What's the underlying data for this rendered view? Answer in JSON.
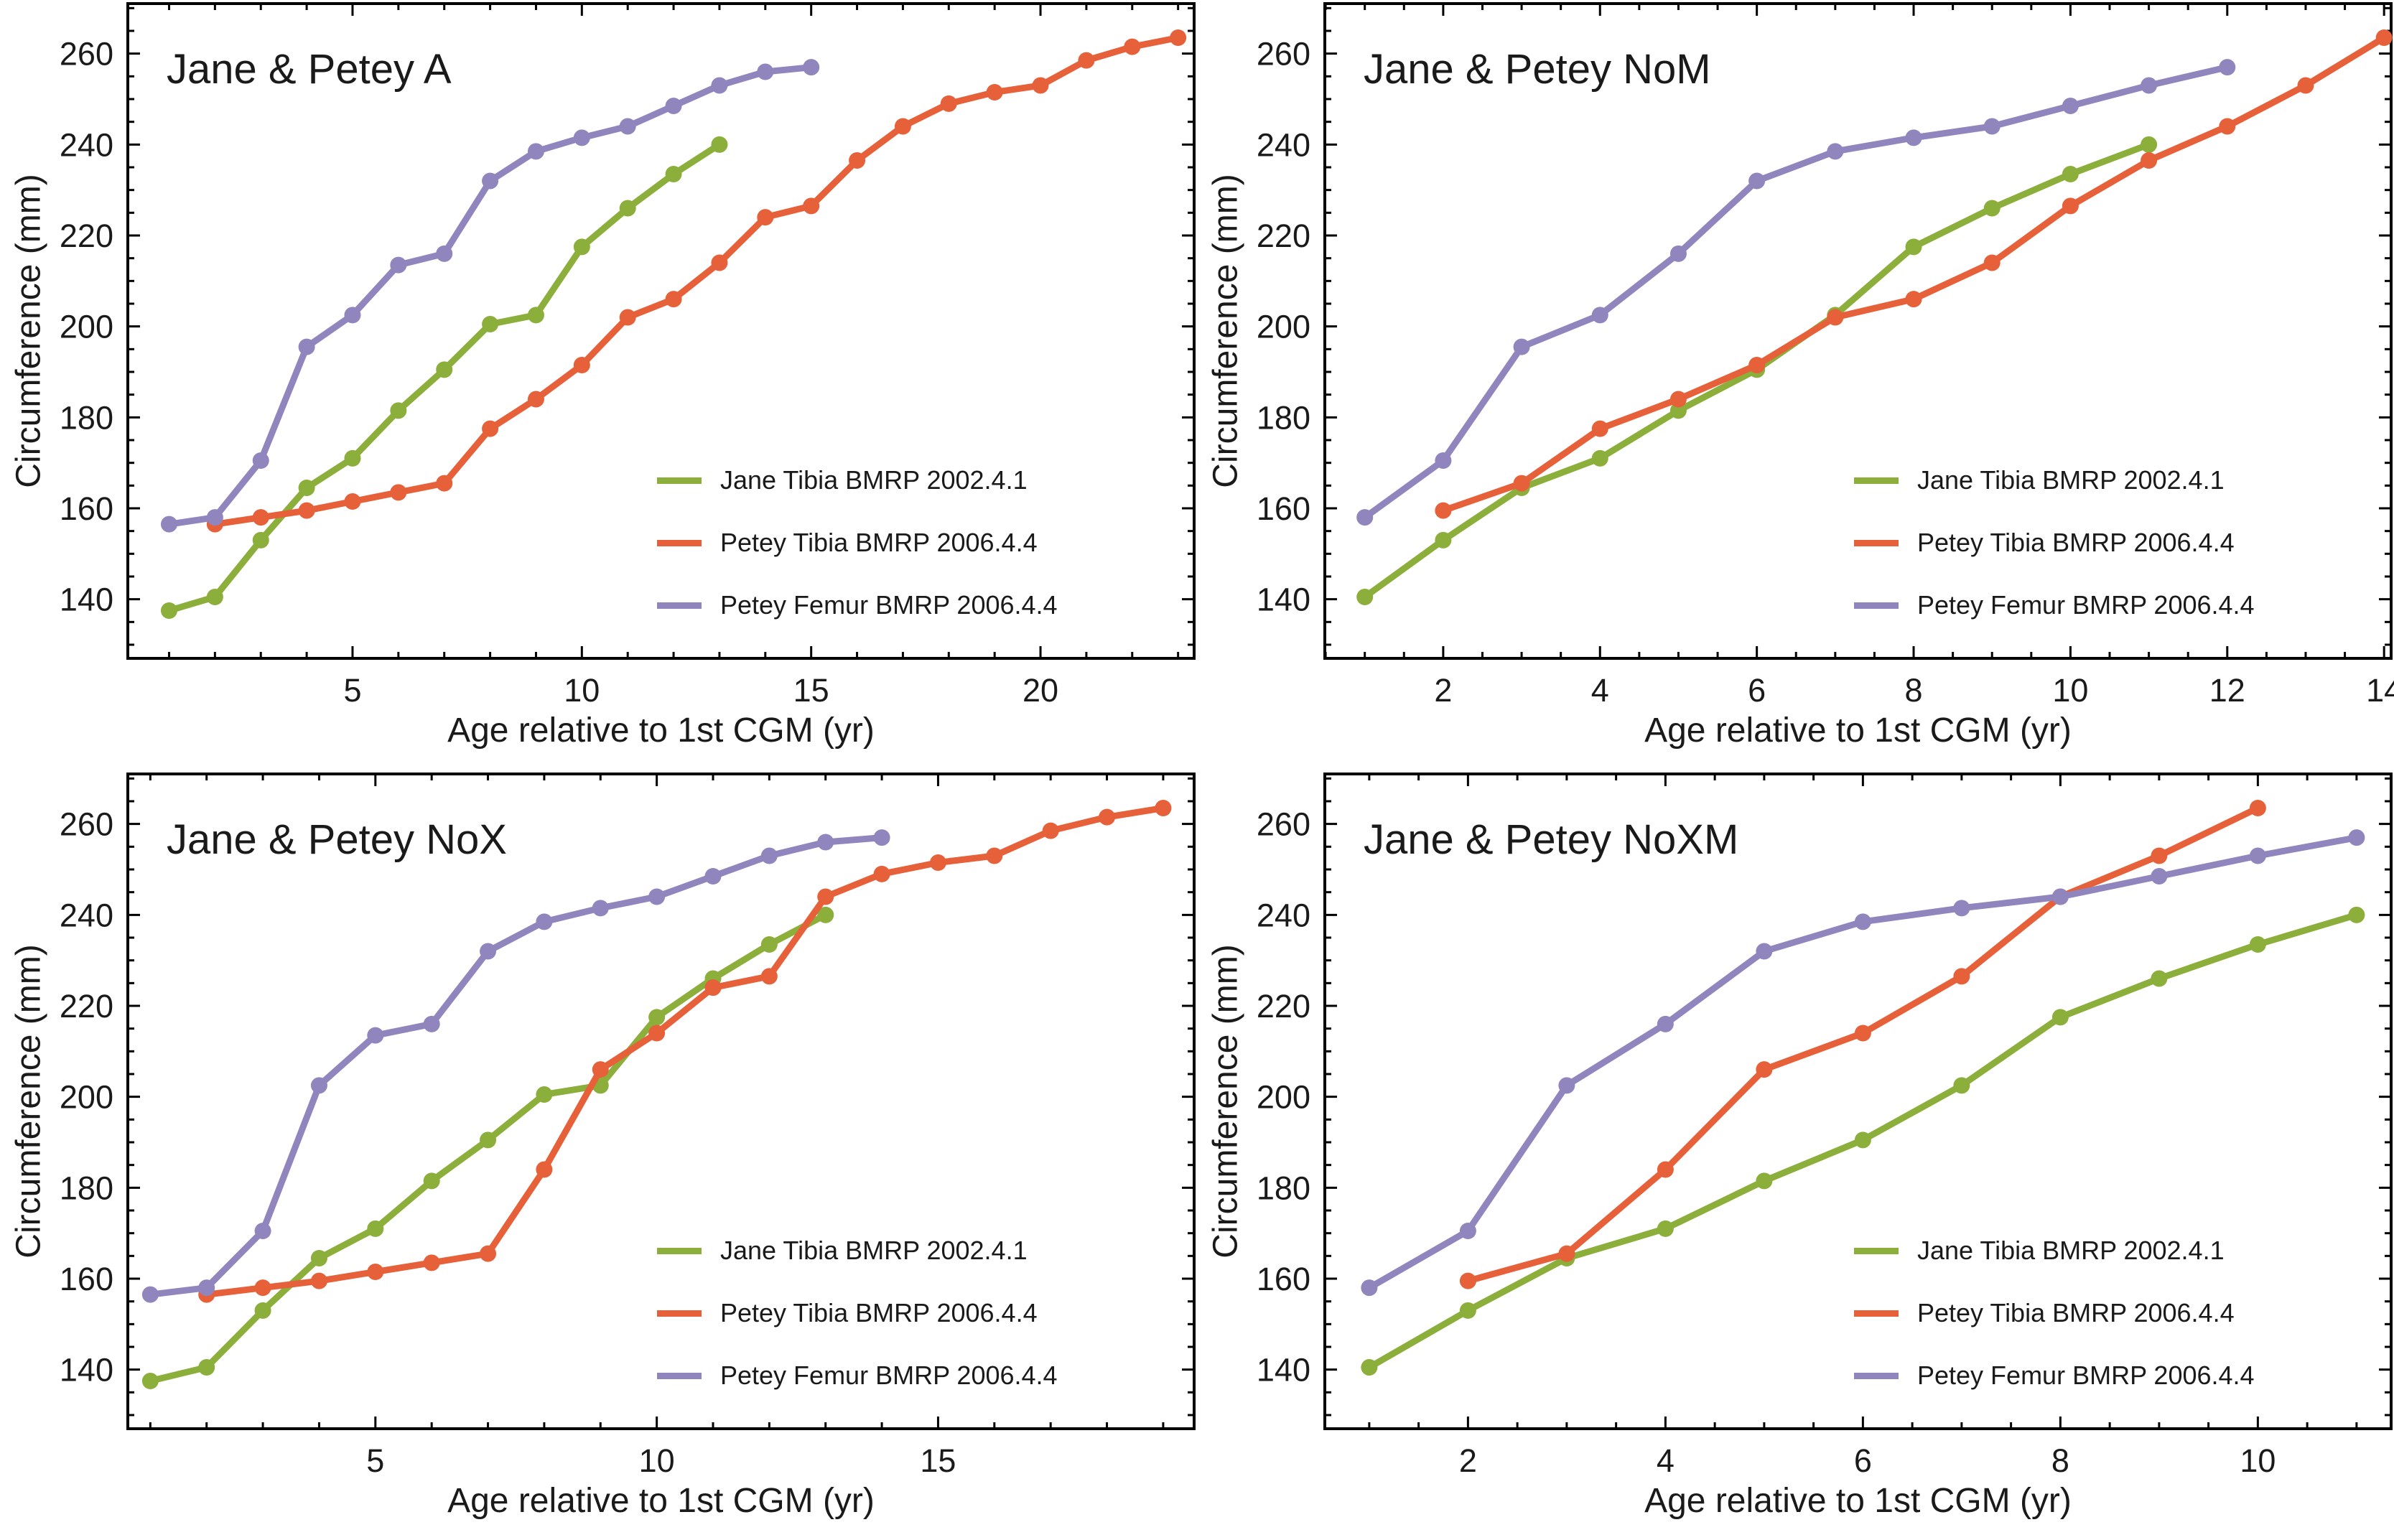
{
  "figure": {
    "background": "#ffffff",
    "frame_color": "#000000",
    "xlabel": "Age relative to 1st CGM (yr)",
    "ylabel": "Circumference (mm)"
  },
  "colors": {
    "jane_tibia": "#8CAE3B",
    "petey_tibia": "#E6603A",
    "petey_femur": "#9185BE"
  },
  "legend": [
    {
      "label": "Jane Tibia BMRP 2002.4.1",
      "color": "#8CAE3B"
    },
    {
      "label": "Petey Tibia BMRP 2006.4.4",
      "color": "#E6603A"
    },
    {
      "label": "Petey Femur BMRP 2006.4.4",
      "color": "#9185BE"
    }
  ],
  "chart_data": [
    {
      "type": "line",
      "title": "Jane & Petey A",
      "xlabel": "Age relative to 1st CGM (yr)",
      "ylabel": "Circumference (mm)",
      "xlim": [
        0.1,
        23.35
      ],
      "ylim": [
        127,
        271
      ],
      "xticks_major": [
        5,
        10,
        15,
        20
      ],
      "xtick_minor_step": 1,
      "yticks_major": [
        140,
        160,
        180,
        200,
        220,
        240,
        260
      ],
      "ytick_minor_step": 5,
      "grid": false,
      "legend_position": "right-center",
      "series": [
        {
          "name": "Jane Tibia BMRP 2002.4.1",
          "color": "#8CAE3B",
          "x": [
            1,
            2,
            3,
            4,
            5,
            6,
            7,
            8,
            9,
            10,
            11,
            12,
            13
          ],
          "y": [
            137.5,
            140.5,
            153,
            164.5,
            171,
            181.5,
            190.5,
            200.5,
            202.5,
            217.5,
            226,
            233.5,
            240
          ]
        },
        {
          "name": "Petey Tibia BMRP 2006.4.4",
          "color": "#E6603A",
          "x": [
            2,
            3,
            4,
            5,
            6,
            7,
            8,
            9,
            10,
            11,
            12,
            13,
            14,
            15,
            16,
            17,
            18,
            19,
            20,
            21,
            22,
            23
          ],
          "y": [
            156.5,
            158,
            159.5,
            161.5,
            163.5,
            165.5,
            177.5,
            184,
            191.5,
            202,
            206,
            214,
            224,
            226.5,
            236.5,
            244,
            249,
            251.5,
            253,
            258.5,
            261.5,
            263.5
          ]
        },
        {
          "name": "Petey Femur BMRP 2006.4.4",
          "color": "#9185BE",
          "x": [
            1,
            2,
            3,
            4,
            5,
            6,
            7,
            8,
            9,
            10,
            11,
            12,
            13,
            14,
            15
          ],
          "y": [
            156.5,
            158,
            170.5,
            195.5,
            202.5,
            213.5,
            216,
            232,
            238.5,
            241.5,
            244,
            248.5,
            253,
            256,
            257
          ]
        }
      ]
    },
    {
      "type": "line",
      "title": "Jane & Petey NoM",
      "xlabel": "Age relative to 1st CGM (yr)",
      "ylabel": "Circumference (mm)",
      "xlim": [
        0.49,
        14.09
      ],
      "ylim": [
        127,
        271
      ],
      "xticks_major": [
        2,
        4,
        6,
        8,
        10,
        12,
        14
      ],
      "xtick_minor_step": 0.5,
      "yticks_major": [
        140,
        160,
        180,
        200,
        220,
        240,
        260
      ],
      "ytick_minor_step": 5,
      "grid": false,
      "legend_position": "right-center",
      "series": [
        {
          "name": "Jane Tibia BMRP 2002.4.1",
          "color": "#8CAE3B",
          "x": [
            1,
            2,
            3,
            4,
            5,
            6,
            7,
            8,
            9,
            10,
            11
          ],
          "y": [
            140.5,
            153,
            164.5,
            171,
            181.5,
            190.5,
            202.5,
            217.5,
            226,
            233.5,
            240
          ]
        },
        {
          "name": "Petey Tibia BMRP 2006.4.4",
          "color": "#E6603A",
          "x": [
            2,
            3,
            4,
            5,
            6,
            7,
            8,
            9,
            10,
            11,
            12,
            13,
            14
          ],
          "y": [
            159.5,
            165.5,
            177.5,
            184,
            191.5,
            202,
            206,
            214,
            226.5,
            236.5,
            244,
            253,
            263.5
          ]
        },
        {
          "name": "Petey Femur BMRP 2006.4.4",
          "color": "#9185BE",
          "x": [
            1,
            2,
            3,
            4,
            5,
            6,
            7,
            8,
            9,
            10,
            11,
            12
          ],
          "y": [
            158,
            170.5,
            195.5,
            202.5,
            216,
            232,
            238.5,
            241.5,
            244,
            248.5,
            253,
            257
          ]
        }
      ]
    },
    {
      "type": "line",
      "title": "Jane & Petey NoX",
      "xlabel": "Age relative to 1st CGM (yr)",
      "ylabel": "Circumference (mm)",
      "xlim": [
        0.6,
        19.55
      ],
      "ylim": [
        127,
        271
      ],
      "xticks_major": [
        5,
        10,
        15
      ],
      "xtick_minor_step": 1,
      "yticks_major": [
        140,
        160,
        180,
        200,
        220,
        240,
        260
      ],
      "ytick_minor_step": 5,
      "grid": false,
      "legend_position": "right-center",
      "series": [
        {
          "name": "Jane Tibia BMRP 2002.4.1",
          "color": "#8CAE3B",
          "x": [
            1,
            2,
            3,
            4,
            5,
            6,
            7,
            8,
            9,
            10,
            11,
            12,
            13
          ],
          "y": [
            137.5,
            140.5,
            153,
            164.5,
            171,
            181.5,
            190.5,
            200.5,
            202.5,
            217.5,
            226,
            233.5,
            240
          ]
        },
        {
          "name": "Petey Tibia BMRP 2006.4.4",
          "color": "#E6603A",
          "x": [
            2,
            3,
            4,
            5,
            6,
            7,
            8,
            9,
            10,
            11,
            12,
            13,
            14,
            15,
            16,
            17,
            18,
            19
          ],
          "y": [
            156.5,
            158,
            159.5,
            161.5,
            163.5,
            165.5,
            184,
            206,
            214,
            224,
            226.5,
            244,
            249,
            251.5,
            253,
            258.5,
            261.5,
            263.5
          ]
        },
        {
          "name": "Petey Femur BMRP 2006.4.4",
          "color": "#9185BE",
          "x": [
            1,
            2,
            3,
            4,
            5,
            6,
            7,
            8,
            9,
            10,
            11,
            12,
            13,
            14
          ],
          "y": [
            156.5,
            158,
            170.5,
            202.5,
            213.5,
            216,
            232,
            238.5,
            241.5,
            244,
            248.5,
            253,
            256,
            257
          ]
        }
      ]
    },
    {
      "type": "line",
      "title": "Jane & Petey NoXM",
      "xlabel": "Age relative to 1st CGM (yr)",
      "ylabel": "Circumference (mm)",
      "xlim": [
        0.55,
        11.35
      ],
      "ylim": [
        127,
        271
      ],
      "xticks_major": [
        2,
        4,
        6,
        8,
        10
      ],
      "xtick_minor_step": 0.5,
      "yticks_major": [
        140,
        160,
        180,
        200,
        220,
        240,
        260
      ],
      "ytick_minor_step": 5,
      "grid": false,
      "legend_position": "right-center",
      "series": [
        {
          "name": "Jane Tibia BMRP 2002.4.1",
          "color": "#8CAE3B",
          "x": [
            1,
            2,
            3,
            4,
            5,
            6,
            7,
            8,
            9,
            10,
            11
          ],
          "y": [
            140.5,
            153,
            164.5,
            171,
            181.5,
            190.5,
            202.5,
            217.5,
            226,
            233.5,
            240
          ]
        },
        {
          "name": "Petey Tibia BMRP 2006.4.4",
          "color": "#E6603A",
          "x": [
            2,
            3,
            4,
            5,
            6,
            7,
            8,
            9,
            10
          ],
          "y": [
            159.5,
            165.5,
            184,
            206,
            214,
            226.5,
            244,
            253,
            263.5
          ]
        },
        {
          "name": "Petey Femur BMRP 2006.4.4",
          "color": "#9185BE",
          "x": [
            1,
            2,
            3,
            4,
            5,
            6,
            7,
            8,
            9,
            10,
            11
          ],
          "y": [
            158,
            170.5,
            202.5,
            216,
            232,
            238.5,
            241.5,
            244,
            248.5,
            253,
            257
          ]
        }
      ]
    }
  ]
}
